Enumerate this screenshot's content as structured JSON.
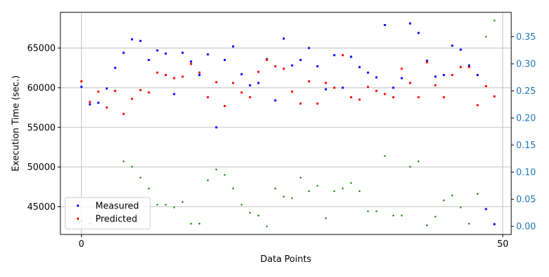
{
  "chart_data": {
    "type": "scatter",
    "xlabel": "Data Points",
    "ylabel": "Execution Time (sec.)",
    "xlim": [
      -2.5,
      51
    ],
    "ylim": [
      41500,
      69500
    ],
    "y2lim": [
      -0.015,
      0.395
    ],
    "x_ticks": [
      0,
      50
    ],
    "y_ticks": [
      45000,
      50000,
      55000,
      60000,
      65000
    ],
    "y2_ticks": [
      0.0,
      0.05,
      0.1,
      0.15,
      0.2,
      0.25,
      0.3,
      0.35
    ],
    "y2_tick_labels": [
      "0.00",
      "0.05",
      "0.10",
      "0.15",
      "0.20",
      "0.25",
      "0.30",
      "0.35"
    ],
    "grid": true,
    "legend_position": "lower-left",
    "colors": {
      "measured": "#0000ff",
      "predicted": "#ff0000",
      "secondary": "#228b22",
      "right_axis": "#1f77b4"
    },
    "x": [
      0,
      1,
      2,
      3,
      4,
      5,
      6,
      7,
      8,
      9,
      10,
      11,
      12,
      13,
      14,
      15,
      16,
      17,
      18,
      19,
      20,
      21,
      22,
      23,
      24,
      25,
      26,
      27,
      28,
      29,
      30,
      31,
      32,
      33,
      34,
      35,
      36,
      37,
      38,
      39,
      40,
      41,
      42,
      43,
      44,
      45,
      46,
      47,
      48,
      49
    ],
    "series": [
      {
        "name": "Measured",
        "axis": "left",
        "values": [
          60100,
          57900,
          58100,
          59900,
          62500,
          64400,
          66100,
          65900,
          63500,
          64700,
          64300,
          59200,
          64400,
          63300,
          61600,
          64200,
          55000,
          63500,
          65200,
          61700,
          60300,
          60600,
          63600,
          58400,
          66200,
          62800,
          63500,
          65000,
          62700,
          59800,
          64100,
          60000,
          63900,
          62600,
          61900,
          61300,
          67900,
          60000,
          61200,
          68100,
          66900,
          63400,
          61400,
          61600,
          65300,
          64800,
          62800,
          61600,
          44700,
          42800
        ]
      },
      {
        "name": "Predicted",
        "axis": "left",
        "values": [
          60800,
          58200,
          59500,
          57500,
          59600,
          56700,
          58600,
          59700,
          59400,
          61900,
          61600,
          61200,
          61400,
          63000,
          61900,
          58800,
          60700,
          57700,
          60600,
          59400,
          58800,
          62000,
          63500,
          62700,
          62400,
          59500,
          58000,
          60800,
          58000,
          60600,
          60000,
          64100,
          58800,
          58500,
          60100,
          59600,
          59200,
          58800,
          62400,
          60600,
          58800,
          63200,
          60300,
          58800,
          61600,
          62600,
          62600,
          57800,
          60200,
          58900
        ]
      },
      {
        "axis": "right",
        "values": [
          0.01,
          0.005,
          0.025,
          0.01,
          0.01,
          0.12,
          0.11,
          0.09,
          0.07,
          0.04,
          0.04,
          0.035,
          0.045,
          0.005,
          0.005,
          0.085,
          0.105,
          0.095,
          0.07,
          0.04,
          0.025,
          0.02,
          0.0,
          0.07,
          0.055,
          0.052,
          0.09,
          0.065,
          0.075,
          0.015,
          0.065,
          0.07,
          0.08,
          0.065,
          0.028,
          0.028,
          0.13,
          0.02,
          0.02,
          0.11,
          0.12,
          0.002,
          0.018,
          0.048,
          0.057,
          0.035,
          0.005,
          0.06,
          0.35,
          0.38
        ]
      }
    ]
  }
}
